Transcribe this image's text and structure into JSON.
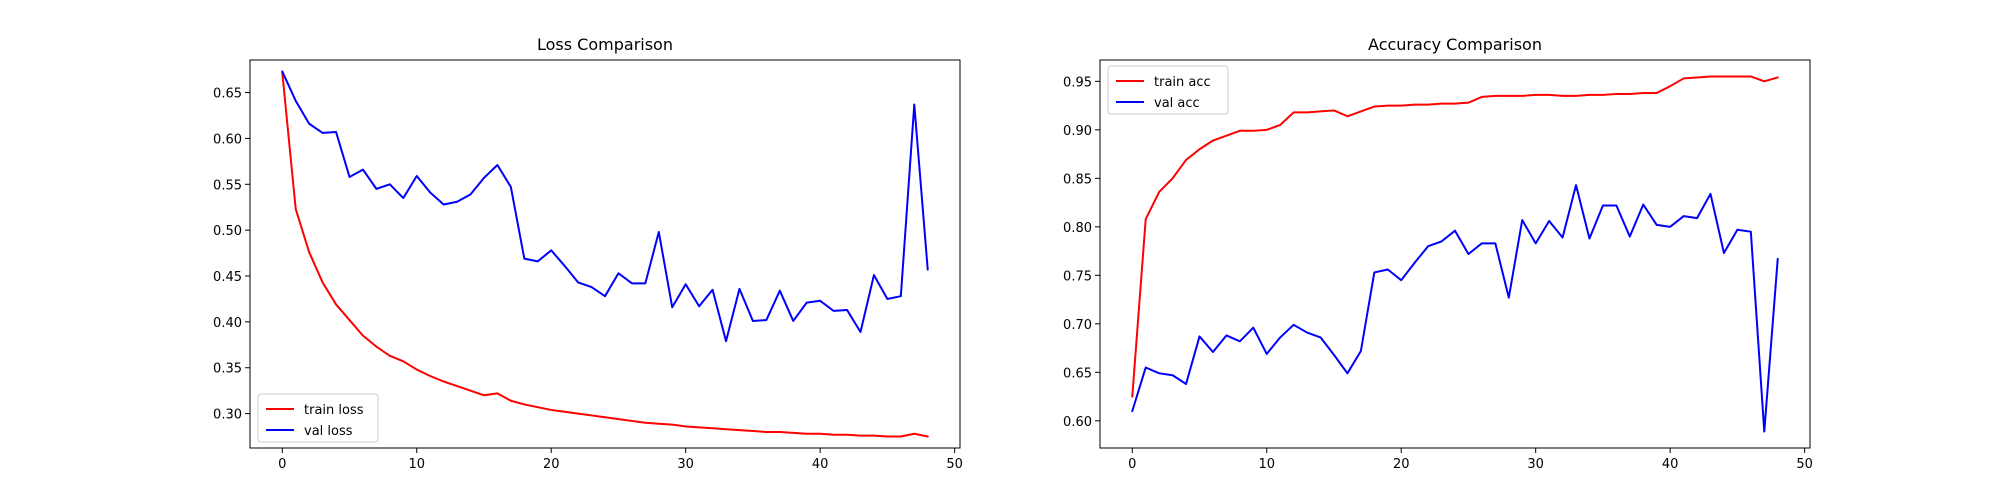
{
  "chart_data": [
    {
      "type": "line",
      "title": "Loss Comparison",
      "xlabel": "",
      "ylabel": "",
      "xlim": [
        -2.4,
        50.4
      ],
      "ylim": [
        0.2625,
        0.6855
      ],
      "xticks": [
        0,
        10,
        20,
        30,
        40,
        50
      ],
      "yticks": [
        0.3,
        0.35,
        0.4,
        0.45,
        0.5,
        0.55,
        0.6,
        0.65
      ],
      "grid": false,
      "legend_position": "lower-left",
      "series": [
        {
          "name": "train loss",
          "color": "#ff0000",
          "x": [
            0,
            1,
            2,
            3,
            4,
            5,
            6,
            7,
            8,
            9,
            10,
            11,
            12,
            13,
            14,
            15,
            16,
            17,
            18,
            19,
            20,
            21,
            22,
            23,
            24,
            25,
            26,
            27,
            28,
            29,
            30,
            31,
            32,
            33,
            34,
            35,
            36,
            37,
            38,
            39,
            40,
            41,
            42,
            43,
            44,
            45,
            46,
            47,
            48
          ],
          "values": [
            0.672,
            0.523,
            0.476,
            0.443,
            0.419,
            0.402,
            0.385,
            0.373,
            0.363,
            0.357,
            0.348,
            0.341,
            0.335,
            0.33,
            0.325,
            0.32,
            0.322,
            0.314,
            0.31,
            0.307,
            0.304,
            0.302,
            0.3,
            0.298,
            0.296,
            0.294,
            0.292,
            0.29,
            0.289,
            0.288,
            0.286,
            0.285,
            0.284,
            0.283,
            0.282,
            0.281,
            0.28,
            0.28,
            0.279,
            0.278,
            0.278,
            0.277,
            0.277,
            0.276,
            0.276,
            0.275,
            0.275,
            0.278,
            0.275
          ]
        },
        {
          "name": "val loss",
          "color": "#0000ff",
          "x": [
            0,
            1,
            2,
            3,
            4,
            5,
            6,
            7,
            8,
            9,
            10,
            11,
            12,
            13,
            14,
            15,
            16,
            17,
            18,
            19,
            20,
            21,
            22,
            23,
            24,
            25,
            26,
            27,
            28,
            29,
            30,
            31,
            32,
            33,
            34,
            35,
            36,
            37,
            38,
            39,
            40,
            41,
            42,
            43,
            44,
            45,
            46,
            47,
            48
          ],
          "values": [
            0.673,
            0.641,
            0.616,
            0.606,
            0.607,
            0.558,
            0.566,
            0.545,
            0.55,
            0.535,
            0.559,
            0.541,
            0.528,
            0.531,
            0.539,
            0.557,
            0.571,
            0.547,
            0.469,
            0.466,
            0.478,
            0.461,
            0.443,
            0.438,
            0.428,
            0.453,
            0.442,
            0.442,
            0.498,
            0.416,
            0.441,
            0.417,
            0.435,
            0.379,
            0.436,
            0.401,
            0.402,
            0.434,
            0.401,
            0.421,
            0.423,
            0.412,
            0.413,
            0.389,
            0.451,
            0.425,
            0.428,
            0.637,
            0.457
          ]
        }
      ]
    },
    {
      "type": "line",
      "title": "Accuracy Comparison",
      "xlabel": "",
      "ylabel": "",
      "xlim": [
        -2.4,
        50.4
      ],
      "ylim": [
        0.572,
        0.972
      ],
      "xticks": [
        0,
        10,
        20,
        30,
        40,
        50
      ],
      "yticks": [
        0.6,
        0.65,
        0.7,
        0.75,
        0.8,
        0.85,
        0.9,
        0.95
      ],
      "grid": false,
      "legend_position": "upper-left",
      "series": [
        {
          "name": "train acc",
          "color": "#ff0000",
          "x": [
            0,
            1,
            2,
            3,
            4,
            5,
            6,
            7,
            8,
            9,
            10,
            11,
            12,
            13,
            14,
            15,
            16,
            17,
            18,
            19,
            20,
            21,
            22,
            23,
            24,
            25,
            26,
            27,
            28,
            29,
            30,
            31,
            32,
            33,
            34,
            35,
            36,
            37,
            38,
            39,
            40,
            41,
            42,
            43,
            44,
            45,
            46,
            47,
            48
          ],
          "values": [
            0.625,
            0.808,
            0.836,
            0.85,
            0.869,
            0.88,
            0.889,
            0.894,
            0.899,
            0.899,
            0.9,
            0.905,
            0.918,
            0.918,
            0.919,
            0.92,
            0.914,
            0.919,
            0.924,
            0.925,
            0.925,
            0.926,
            0.926,
            0.927,
            0.927,
            0.928,
            0.934,
            0.935,
            0.935,
            0.935,
            0.936,
            0.936,
            0.935,
            0.935,
            0.936,
            0.936,
            0.937,
            0.937,
            0.938,
            0.938,
            0.945,
            0.953,
            0.954,
            0.955,
            0.955,
            0.955,
            0.955,
            0.95,
            0.954
          ]
        },
        {
          "name": "val acc",
          "color": "#0000ff",
          "x": [
            0,
            1,
            2,
            3,
            4,
            5,
            6,
            7,
            8,
            9,
            10,
            11,
            12,
            13,
            14,
            15,
            16,
            17,
            18,
            19,
            20,
            21,
            22,
            23,
            24,
            25,
            26,
            27,
            28,
            29,
            30,
            31,
            32,
            33,
            34,
            35,
            36,
            37,
            38,
            39,
            40,
            41,
            42,
            43,
            44,
            45,
            46,
            47,
            48
          ],
          "values": [
            0.61,
            0.655,
            0.649,
            0.647,
            0.638,
            0.687,
            0.671,
            0.688,
            0.682,
            0.696,
            0.669,
            0.686,
            0.699,
            0.691,
            0.686,
            0.668,
            0.649,
            0.672,
            0.753,
            0.756,
            0.745,
            0.763,
            0.78,
            0.785,
            0.796,
            0.772,
            0.783,
            0.783,
            0.727,
            0.807,
            0.783,
            0.806,
            0.789,
            0.843,
            0.788,
            0.822,
            0.822,
            0.79,
            0.823,
            0.802,
            0.8,
            0.811,
            0.809,
            0.834,
            0.773,
            0.797,
            0.795,
            0.589,
            0.767
          ]
        }
      ]
    }
  ]
}
